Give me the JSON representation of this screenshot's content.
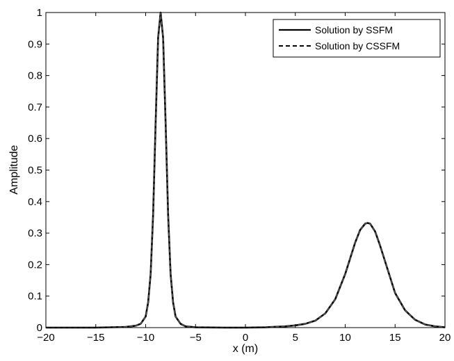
{
  "chart_data": {
    "type": "line",
    "xlabel": "x (m)",
    "ylabel": "Amplitude",
    "xlim": [
      -20,
      20
    ],
    "ylim": [
      0,
      1
    ],
    "xticks": [
      -20,
      -15,
      -10,
      -5,
      0,
      5,
      10,
      15,
      20
    ],
    "yticks": [
      0,
      0.1,
      0.2,
      0.3,
      0.4,
      0.5,
      0.6,
      0.7,
      0.8,
      0.9,
      1
    ],
    "xtick_labels": [
      "−20",
      "−15",
      "−10",
      "−5",
      "0",
      "5",
      "10",
      "15",
      "20"
    ],
    "ytick_labels": [
      "0",
      "0.1",
      "0.2",
      "0.3",
      "0.4",
      "0.5",
      "0.6",
      "0.7",
      "0.8",
      "0.9",
      "1"
    ],
    "grid": false,
    "legend_position": "top-right",
    "series": [
      {
        "name": "Solution by SSFM",
        "style": "solid",
        "color": "#000000",
        "x": [
          -20,
          -15,
          -12,
          -11,
          -10.5,
          -10,
          -9.75,
          -9.5,
          -9.25,
          -9,
          -8.75,
          -8.5,
          -8.25,
          -8,
          -7.75,
          -7.5,
          -7.25,
          -7,
          -6.5,
          -6,
          -5,
          -2,
          0,
          2,
          4,
          5,
          6,
          7,
          8,
          9,
          10,
          10.5,
          11,
          11.5,
          12,
          12.25,
          12.5,
          13,
          13.5,
          14,
          14.5,
          15,
          16,
          17,
          18,
          19,
          20
        ],
        "y": [
          0,
          0,
          0.002,
          0.006,
          0.012,
          0.035,
          0.08,
          0.17,
          0.36,
          0.65,
          0.92,
          1.0,
          0.92,
          0.65,
          0.36,
          0.17,
          0.08,
          0.035,
          0.012,
          0.004,
          0.001,
          0,
          0,
          0.001,
          0.004,
          0.007,
          0.012,
          0.022,
          0.045,
          0.09,
          0.17,
          0.22,
          0.27,
          0.31,
          0.33,
          0.332,
          0.33,
          0.305,
          0.26,
          0.21,
          0.16,
          0.11,
          0.055,
          0.025,
          0.01,
          0.004,
          0.001
        ]
      },
      {
        "name": "Solution by CSSFM",
        "style": "dashed",
        "color": "#000000",
        "x": [
          -20,
          -15,
          -12,
          -11,
          -10.5,
          -10,
          -9.75,
          -9.5,
          -9.25,
          -9,
          -8.75,
          -8.5,
          -8.25,
          -8,
          -7.75,
          -7.5,
          -7.25,
          -7,
          -6.5,
          -6,
          -5,
          -2,
          0,
          2,
          4,
          5,
          6,
          7,
          8,
          9,
          10,
          10.5,
          11,
          11.5,
          12,
          12.25,
          12.5,
          13,
          13.5,
          14,
          14.5,
          15,
          16,
          17,
          18,
          19,
          20
        ],
        "y": [
          0,
          0,
          0.002,
          0.006,
          0.012,
          0.035,
          0.08,
          0.17,
          0.36,
          0.65,
          0.92,
          1.0,
          0.92,
          0.65,
          0.36,
          0.17,
          0.08,
          0.035,
          0.012,
          0.004,
          0.001,
          0,
          0,
          0.001,
          0.004,
          0.007,
          0.012,
          0.022,
          0.045,
          0.09,
          0.17,
          0.22,
          0.27,
          0.31,
          0.33,
          0.332,
          0.33,
          0.305,
          0.26,
          0.21,
          0.16,
          0.11,
          0.055,
          0.025,
          0.01,
          0.004,
          0.001
        ]
      }
    ]
  }
}
